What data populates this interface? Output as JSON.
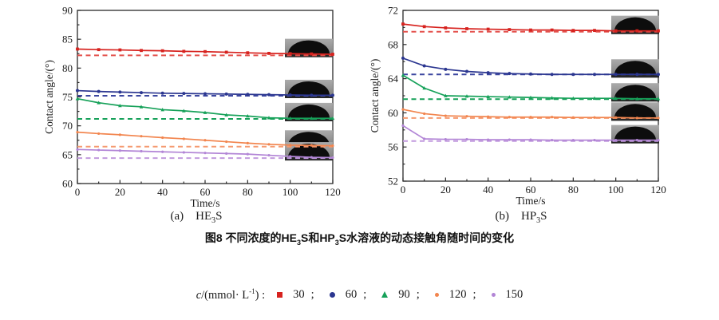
{
  "figure": {
    "caption": {
      "pre": "图8  不同浓度的HE",
      "sub1": "3",
      "mid": "S和HP",
      "sub2": "3",
      "post": "S水溶液的动态接触角随时间的变化"
    }
  },
  "legend": {
    "sym": "c",
    "rest_a": "/(mmol· L",
    "sup": "-1",
    "rest_b": ") :",
    "separator": ";",
    "items": [
      {
        "value": "30",
        "marker": "square",
        "color": "#d7231f"
      },
      {
        "value": "60",
        "marker": "circle",
        "color": "#2b3690"
      },
      {
        "value": "90",
        "marker": "triangle",
        "color": "#16a159"
      },
      {
        "value": "120",
        "marker": "dot",
        "color": "#f2854e"
      },
      {
        "value": "150",
        "marker": "dot",
        "color": "#b285d6"
      }
    ]
  },
  "chart_data": [
    {
      "type": "line",
      "subplot_tag": "(a)",
      "compound": {
        "pre": "HE",
        "sub": "3",
        "post": "S"
      },
      "xlabel": "Time/s",
      "ylabel": "Contact angle/(°)",
      "xlim": [
        0,
        120
      ],
      "ylim": [
        60,
        90
      ],
      "xticks": [
        0,
        20,
        40,
        60,
        80,
        100,
        120
      ],
      "yticks": [
        60,
        65,
        70,
        75,
        80,
        85,
        90
      ],
      "grid": false,
      "x": [
        0,
        10,
        20,
        30,
        40,
        50,
        60,
        70,
        80,
        90,
        100,
        110,
        120
      ],
      "series": [
        {
          "name": "30",
          "color": "#d7231f",
          "dash_color": "#e4514c",
          "marker": "square",
          "values": [
            83.3,
            83.2,
            83.15,
            83.05,
            83.0,
            82.9,
            82.85,
            82.75,
            82.65,
            82.55,
            82.5,
            82.45,
            82.4
          ],
          "equilibrium": 82.2
        },
        {
          "name": "60",
          "color": "#2b3690",
          "dash_color": "#3c47a0",
          "marker": "circle",
          "values": [
            76.1,
            75.95,
            75.85,
            75.75,
            75.65,
            75.6,
            75.55,
            75.5,
            75.45,
            75.4,
            75.35,
            75.3,
            75.3
          ],
          "equilibrium": 75.2
        },
        {
          "name": "90",
          "color": "#16a159",
          "dash_color": "#16a159",
          "marker": "triangle",
          "values": [
            74.7,
            74.0,
            73.5,
            73.3,
            72.8,
            72.6,
            72.3,
            71.9,
            71.7,
            71.4,
            71.3,
            71.3,
            71.3
          ],
          "equilibrium": 71.2
        },
        {
          "name": "120",
          "color": "#f2854e",
          "dash_color": "#f59a70",
          "marker": "dot",
          "values": [
            68.9,
            68.65,
            68.45,
            68.2,
            67.95,
            67.75,
            67.5,
            67.25,
            67.0,
            66.8,
            66.65,
            66.6,
            66.55
          ],
          "equilibrium": 66.4
        },
        {
          "name": "150",
          "color": "#b285d6",
          "dash_color": "#c29ade",
          "marker": "dot",
          "values": [
            65.9,
            65.8,
            65.7,
            65.6,
            65.5,
            65.4,
            65.3,
            65.2,
            65.1,
            64.9,
            64.7,
            64.55,
            64.5
          ],
          "equilibrium": 64.4
        }
      ],
      "insets": [
        {
          "series": "30",
          "base": 82.45
        },
        {
          "series": "60",
          "base": 75.35
        },
        {
          "series": "90",
          "base": 71.35
        },
        {
          "series": "120",
          "base": 66.6
        },
        {
          "series": "150",
          "base": 64.55
        }
      ]
    },
    {
      "type": "line",
      "subplot_tag": "(b)",
      "compound": {
        "pre": "HP",
        "sub": "3",
        "post": "S"
      },
      "xlabel": "Time/s",
      "ylabel": "Contact angle/(°)",
      "xlim": [
        0,
        120
      ],
      "ylim": [
        52,
        72
      ],
      "xticks": [
        0,
        20,
        40,
        60,
        80,
        100,
        120
      ],
      "yticks": [
        52,
        56,
        60,
        64,
        68,
        72
      ],
      "grid": false,
      "x": [
        0,
        10,
        20,
        30,
        40,
        50,
        60,
        70,
        80,
        90,
        100,
        110,
        120
      ],
      "series": [
        {
          "name": "30",
          "color": "#d7231f",
          "dash_color": "#e4514c",
          "marker": "square",
          "values": [
            70.4,
            70.1,
            69.95,
            69.85,
            69.8,
            69.75,
            69.7,
            69.7,
            69.65,
            69.65,
            69.6,
            69.6,
            69.6
          ],
          "equilibrium": 69.5
        },
        {
          "name": "60",
          "color": "#2b3690",
          "dash_color": "#3c47a0",
          "marker": "circle",
          "values": [
            66.4,
            65.5,
            65.1,
            64.85,
            64.7,
            64.6,
            64.55,
            64.5,
            64.5,
            64.5,
            64.5,
            64.5,
            64.5
          ],
          "equilibrium": 64.5
        },
        {
          "name": "90",
          "color": "#16a159",
          "dash_color": "#16a159",
          "marker": "triangle",
          "values": [
            64.4,
            62.9,
            62.0,
            61.95,
            61.9,
            61.85,
            61.8,
            61.75,
            61.7,
            61.7,
            61.7,
            61.65,
            61.65
          ],
          "equilibrium": 61.6
        },
        {
          "name": "120",
          "color": "#f2854e",
          "dash_color": "#f59a70",
          "marker": "dot",
          "values": [
            60.4,
            59.9,
            59.65,
            59.6,
            59.55,
            59.5,
            59.5,
            59.5,
            59.45,
            59.45,
            59.45,
            59.4,
            59.4
          ],
          "equilibrium": 59.4
        },
        {
          "name": "150",
          "color": "#b285d6",
          "dash_color": "#c29ade",
          "marker": "dot",
          "values": [
            58.5,
            56.95,
            56.9,
            56.9,
            56.85,
            56.85,
            56.85,
            56.8,
            56.8,
            56.8,
            56.8,
            56.8,
            56.8
          ],
          "equilibrium": 56.7
        }
      ],
      "insets": [
        {
          "series": "30",
          "base": 69.6
        },
        {
          "series": "60",
          "base": 64.5
        },
        {
          "series": "90",
          "base": 61.7
        },
        {
          "series": "120",
          "base": 59.45
        },
        {
          "series": "150",
          "base": 56.8
        }
      ]
    }
  ]
}
